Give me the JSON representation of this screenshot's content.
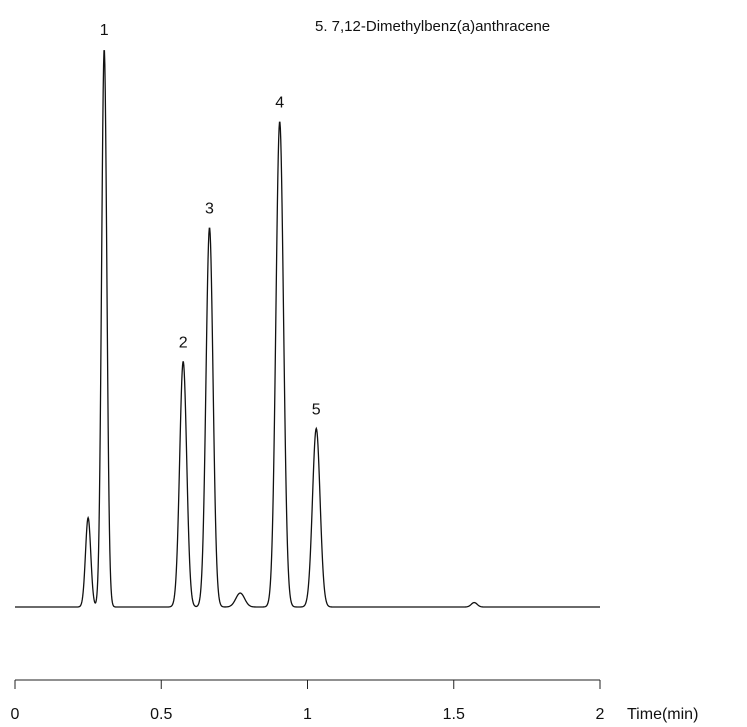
{
  "legend": {
    "items": [
      "5. 7,12-Dimethylbenz(a)anthracene"
    ]
  },
  "chart_data": {
    "type": "line",
    "xlabel": "Time(min)",
    "ylabel": "",
    "xlim": [
      0,
      2
    ],
    "ylim": [
      0,
      1.0
    ],
    "x_ticks": [
      0,
      0.5,
      1,
      1.5,
      2
    ],
    "x_tick_labels": [
      "0",
      "0.5",
      "1",
      "1.5",
      "2"
    ],
    "grid": false,
    "series": [
      {
        "name": "",
        "color": "#111111",
        "baseline": 0.0,
        "peaks": [
          {
            "label": "",
            "x": 0.25,
            "height": 0.16,
            "sigma": 0.009
          },
          {
            "label": "1",
            "x": 0.305,
            "height": 1.0,
            "sigma": 0.009
          },
          {
            "label": "2",
            "x": 0.575,
            "height": 0.44,
            "sigma": 0.012
          },
          {
            "label": "3",
            "x": 0.665,
            "height": 0.68,
            "sigma": 0.012
          },
          {
            "label": "",
            "x": 0.77,
            "height": 0.025,
            "sigma": 0.015
          },
          {
            "label": "4",
            "x": 0.905,
            "height": 0.87,
            "sigma": 0.013
          },
          {
            "label": "5",
            "x": 1.03,
            "height": 0.32,
            "sigma": 0.013
          },
          {
            "label": "",
            "x": 1.57,
            "height": 0.008,
            "sigma": 0.01
          }
        ]
      }
    ]
  }
}
